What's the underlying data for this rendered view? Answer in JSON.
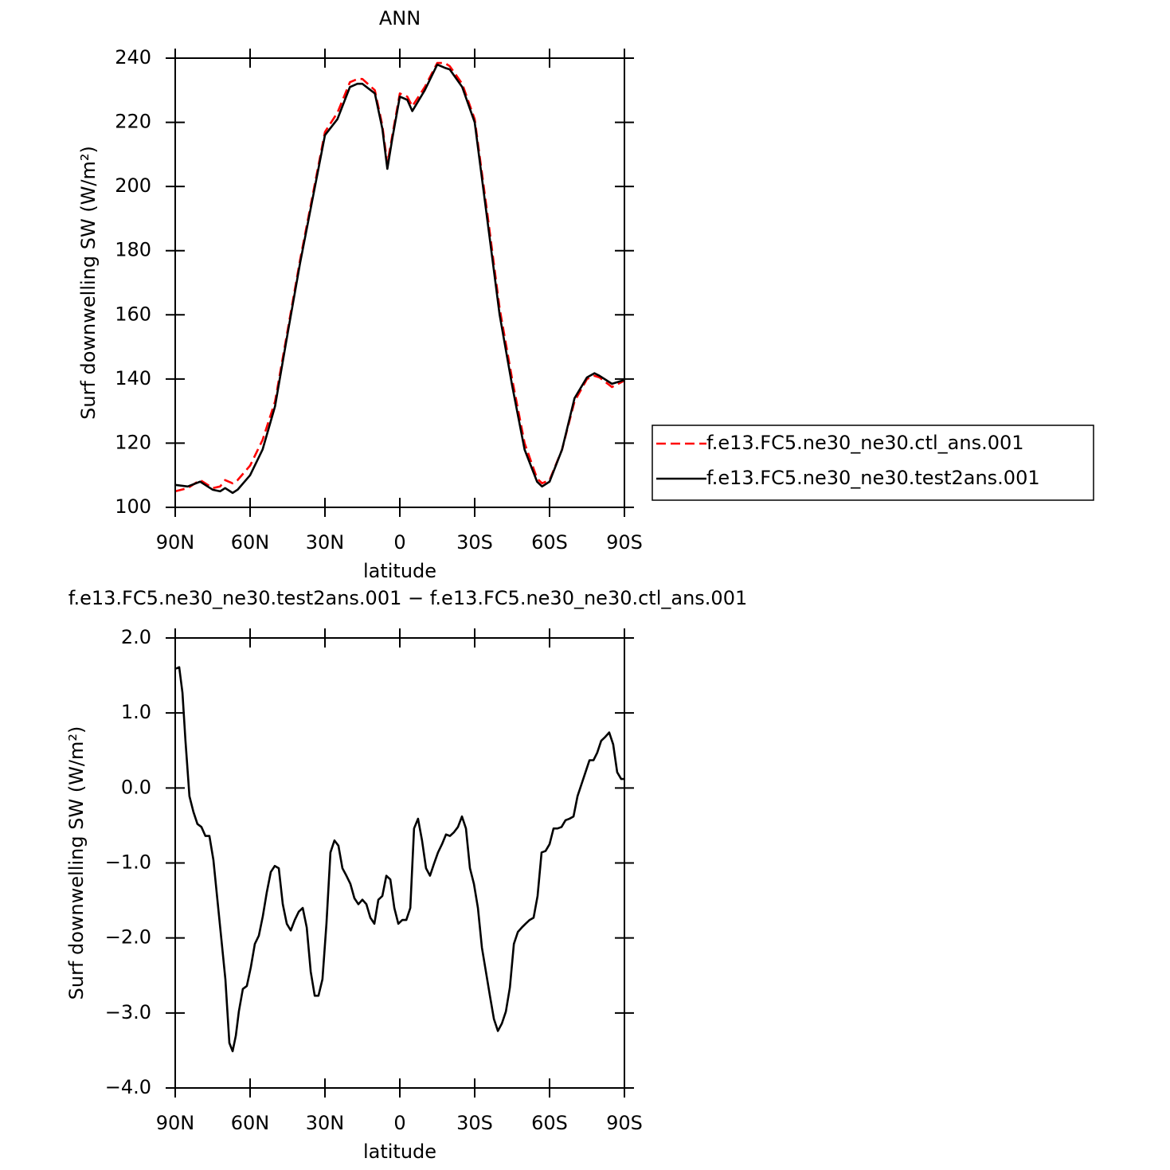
{
  "chart_data": [
    {
      "type": "line",
      "title": "ANN",
      "x_label": "latitude",
      "y_label": "Surf downwelling SW (W/m²)",
      "xlim": [
        90,
        -90
      ],
      "xticks": [
        {
          "value": 90,
          "label": "90N"
        },
        {
          "value": 60,
          "label": "60N"
        },
        {
          "value": 30,
          "label": "30N"
        },
        0,
        {
          "value": -30,
          "label": "30S"
        },
        {
          "value": -60,
          "label": "60S"
        },
        {
          "value": -90,
          "label": "90S"
        }
      ],
      "ylim": [
        100,
        240
      ],
      "yticks": [
        100,
        120,
        140,
        160,
        180,
        200,
        220,
        240
      ],
      "legend": "outside-right",
      "x": [
        90,
        85,
        80,
        75,
        72,
        70,
        67,
        65,
        60,
        55,
        50,
        45,
        40,
        35,
        30,
        25,
        20,
        17,
        15,
        10,
        7,
        5,
        3,
        0,
        -3,
        -5,
        -10,
        -15,
        -18,
        -20,
        -25,
        -30,
        -35,
        -40,
        -45,
        -50,
        -55,
        -57,
        -60,
        -65,
        -70,
        -75,
        -78,
        -80,
        -85,
        -90
      ],
      "series": [
        {
          "name": "f.e13.FC5.ne30_ne30.ctl_ans.001",
          "color": "#ff0000",
          "dash": "dashed",
          "values": [
            105,
            106,
            108.5,
            106,
            106.5,
            108.5,
            107.5,
            108.5,
            113,
            121,
            133,
            155,
            177,
            197,
            217,
            223,
            232.5,
            233.5,
            233.5,
            230,
            219,
            207,
            216,
            229,
            228,
            225,
            231,
            238.5,
            238.5,
            237.5,
            232,
            221,
            192,
            162,
            140,
            120,
            109,
            107.5,
            108.5,
            118,
            133,
            140,
            141,
            140.5,
            137.5,
            139.5
          ]
        },
        {
          "name": "f.e13.FC5.ne30_ne30.test2ans.001",
          "color": "#000000",
          "dash": "solid",
          "values": [
            107,
            106.5,
            108,
            105.5,
            105,
            106,
            104.5,
            105.5,
            110,
            118,
            131.5,
            154,
            176,
            196,
            216,
            221,
            231,
            232,
            232,
            229,
            218,
            205.5,
            215,
            228,
            227,
            223.5,
            230,
            238,
            237,
            236.5,
            231,
            220,
            190,
            160,
            138,
            118,
            108,
            106.5,
            108,
            118,
            134,
            140.5,
            141.8,
            141,
            138.5,
            139.7
          ]
        }
      ]
    },
    {
      "type": "line",
      "title": "f.e13.FC5.ne30_ne30.test2ans.001 − f.e13.FC5.ne30_ne30.ctl_ans.001",
      "x_label": "latitude",
      "y_label": "Surf downwelling SW (W/m²)",
      "xlim": [
        90,
        -90
      ],
      "xticks": [
        {
          "value": 90,
          "label": "90N"
        },
        {
          "value": 60,
          "label": "60N"
        },
        {
          "value": 30,
          "label": "30N"
        },
        0,
        {
          "value": -30,
          "label": "30S"
        },
        {
          "value": -60,
          "label": "60S"
        },
        {
          "value": -90,
          "label": "90S"
        }
      ],
      "ylim": [
        -4,
        2
      ],
      "yticks": [
        {
          "value": -4,
          "label": "−4.0"
        },
        {
          "value": -3,
          "label": "−3.0"
        },
        {
          "value": -2,
          "label": "−2.0"
        },
        {
          "value": -1,
          "label": "−1.0"
        },
        {
          "value": 0,
          "label": "0.0"
        },
        {
          "value": 1,
          "label": "1.0"
        },
        {
          "value": 2,
          "label": "2.0"
        }
      ],
      "x": [
        89.7,
        88.4,
        87.1,
        85.9,
        84.3,
        82.7,
        81.1,
        79.5,
        77.9,
        76.3,
        74.7,
        73.1,
        71.5,
        69.9,
        68.3,
        67.0,
        65.7,
        64.5,
        62.9,
        61.3,
        59.7,
        58.1,
        56.5,
        54.9,
        53.3,
        51.7,
        50.1,
        48.5,
        46.9,
        45.3,
        43.7,
        42.1,
        40.5,
        38.9,
        37.3,
        35.7,
        34.1,
        32.6,
        31.0,
        29.4,
        27.8,
        26.2,
        24.6,
        23.0,
        21.4,
        19.8,
        18.2,
        16.6,
        15.0,
        13.4,
        11.8,
        10.2,
        8.6,
        7.0,
        5.4,
        3.8,
        2.2,
        0.6,
        -1.0,
        -2.6,
        -4.2,
        -5.7,
        -7.3,
        -8.9,
        -10.5,
        -12.1,
        -13.7,
        -15.3,
        -16.9,
        -18.5,
        -20.1,
        -21.7,
        -23.3,
        -24.9,
        -26.5,
        -28.1,
        -29.7,
        -31.3,
        -32.9,
        -34.5,
        -36.1,
        -37.7,
        -39.3,
        -40.9,
        -42.5,
        -44.1,
        -45.7,
        -47.3,
        -48.9,
        -50.4,
        -52.0,
        -53.6,
        -55.2,
        -56.8,
        -58.4,
        -60.0,
        -61.6,
        -63.2,
        -64.8,
        -66.4,
        -68.0,
        -69.6,
        -71.2,
        -72.8,
        -74.4,
        -76.0,
        -77.6,
        -79.1,
        -80.7,
        -82.3,
        -83.9,
        -85.5,
        -87.1,
        -88.7,
        -90
      ],
      "series": [
        {
          "color": "#000000",
          "dash": "solid",
          "values": [
            1.59,
            1.61,
            1.27,
            0.63,
            -0.11,
            -0.32,
            -0.48,
            -0.52,
            -0.64,
            -0.64,
            -0.96,
            -1.49,
            -2.02,
            -2.55,
            -3.4,
            -3.51,
            -3.3,
            -2.98,
            -2.68,
            -2.64,
            -2.39,
            -2.08,
            -1.97,
            -1.71,
            -1.39,
            -1.12,
            -1.04,
            -1.07,
            -1.55,
            -1.81,
            -1.9,
            -1.76,
            -1.65,
            -1.6,
            -1.86,
            -2.45,
            -2.77,
            -2.77,
            -2.55,
            -1.81,
            -0.86,
            -0.7,
            -0.77,
            -1.07,
            -1.17,
            -1.28,
            -1.47,
            -1.55,
            -1.49,
            -1.55,
            -1.73,
            -1.81,
            -1.49,
            -1.44,
            -1.17,
            -1.22,
            -1.6,
            -1.81,
            -1.76,
            -1.76,
            -1.6,
            -0.54,
            -0.41,
            -0.7,
            -1.07,
            -1.17,
            -1.01,
            -0.86,
            -0.75,
            -0.62,
            -0.64,
            -0.59,
            -0.52,
            -0.38,
            -0.54,
            -1.07,
            -1.28,
            -1.6,
            -2.13,
            -2.45,
            -2.77,
            -3.08,
            -3.24,
            -3.14,
            -2.98,
            -2.66,
            -2.08,
            -1.92,
            -1.86,
            -1.81,
            -1.76,
            -1.73,
            -1.44,
            -0.86,
            -0.84,
            -0.75,
            -0.54,
            -0.54,
            -0.52,
            -0.43,
            -0.41,
            -0.38,
            -0.11,
            0.05,
            0.21,
            0.37,
            0.37,
            0.47,
            0.63,
            0.68,
            0.74,
            0.58,
            0.21,
            0.12,
            0.12
          ]
        }
      ]
    }
  ]
}
